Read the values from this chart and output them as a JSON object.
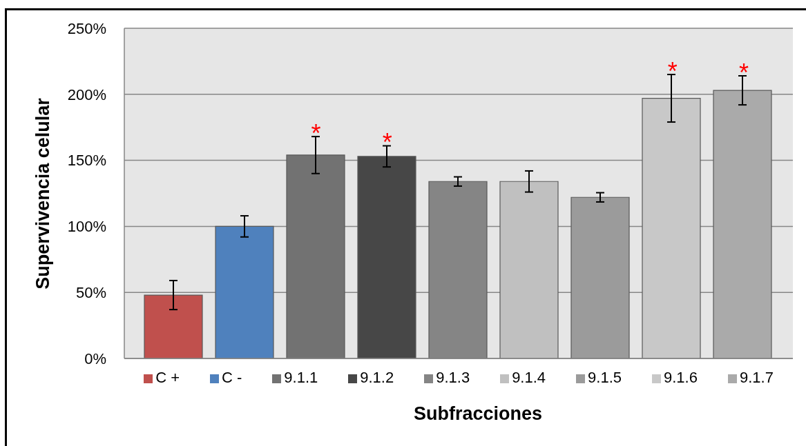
{
  "chart_data": {
    "type": "bar",
    "xlabel": "Subfracciones",
    "ylabel": "Supervivencia celular",
    "categories": [
      null
    ],
    "series": [
      {
        "name": "C +",
        "color": "#c0504d",
        "values": [
          48
        ],
        "errors": [
          11
        ]
      },
      {
        "name": "C -",
        "color": "#4f81bd",
        "values": [
          100
        ],
        "errors": [
          8
        ]
      },
      {
        "name": "9.1.1",
        "color": "#727272",
        "values": [
          154
        ],
        "errors": [
          14
        ]
      },
      {
        "name": "9.1.2",
        "color": "#474747",
        "values": [
          153
        ],
        "errors": [
          8
        ]
      },
      {
        "name": "9.1.3",
        "color": "#858585",
        "values": [
          134
        ],
        "errors": [
          3.5
        ]
      },
      {
        "name": "9.1.4",
        "color": "#c0c0c0",
        "values": [
          134
        ],
        "errors": [
          8
        ]
      },
      {
        "name": "9.1.5",
        "color": "#9b9b9b",
        "values": [
          122
        ],
        "errors": [
          3.5
        ]
      },
      {
        "name": "9.1.6",
        "color": "#c8c8c8",
        "values": [
          197
        ],
        "errors": [
          18
        ]
      },
      {
        "name": "9.1.7",
        "color": "#aaaaaa",
        "values": [
          203
        ],
        "errors": [
          11
        ]
      }
    ],
    "ylim": [
      0,
      250
    ],
    "yticks": [
      {
        "value": 0,
        "label": "0%"
      },
      {
        "value": 50,
        "label": "50%"
      },
      {
        "value": 100,
        "label": "100%"
      },
      {
        "value": 150,
        "label": "150%"
      },
      {
        "value": 200,
        "label": "200%"
      },
      {
        "value": 250,
        "label": "250%"
      }
    ],
    "grid": "y",
    "legend": "bottom",
    "tick_labels": "y",
    "annotations": [
      "*",
      "*",
      "*",
      "*"
    ]
  }
}
